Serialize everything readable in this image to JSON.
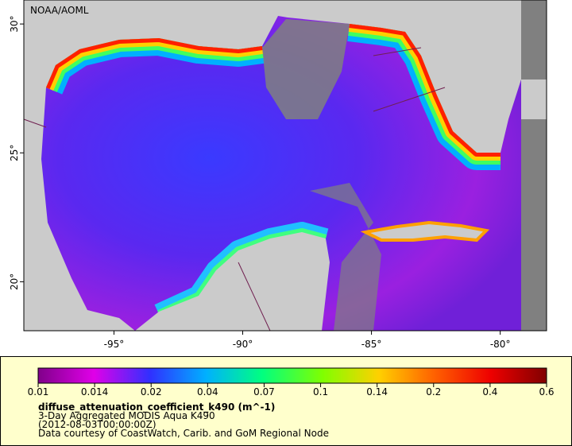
{
  "map": {
    "credit": "NOAA/AOML",
    "xlim": [
      -98.5,
      -78.2
    ],
    "ylim": [
      18.1,
      30.93
    ],
    "xticks": [
      {
        "value": -95,
        "label": "-95°"
      },
      {
        "value": -90,
        "label": "-90°"
      },
      {
        "value": -85,
        "label": "-85°"
      },
      {
        "value": -80,
        "label": "-80°"
      }
    ],
    "yticks": [
      {
        "value": 30,
        "label": "30°"
      },
      {
        "value": 25,
        "label": "25°"
      },
      {
        "value": 20,
        "label": "20°"
      }
    ]
  },
  "legend": {
    "ticks": [
      0.01,
      0.014,
      0.02,
      0.04,
      0.07,
      0.1,
      0.14,
      0.2,
      0.4,
      0.6
    ],
    "variable": "diffuse_attenuation_coefficient_k490 (m^-1)",
    "dataset": "3-Day Aggregated MODIS Aqua K490",
    "time": "(2012-08-03T00:00:00Z)",
    "source": "Data courtesy of CoastWatch, Carib. and GoM Regional Node"
  }
}
